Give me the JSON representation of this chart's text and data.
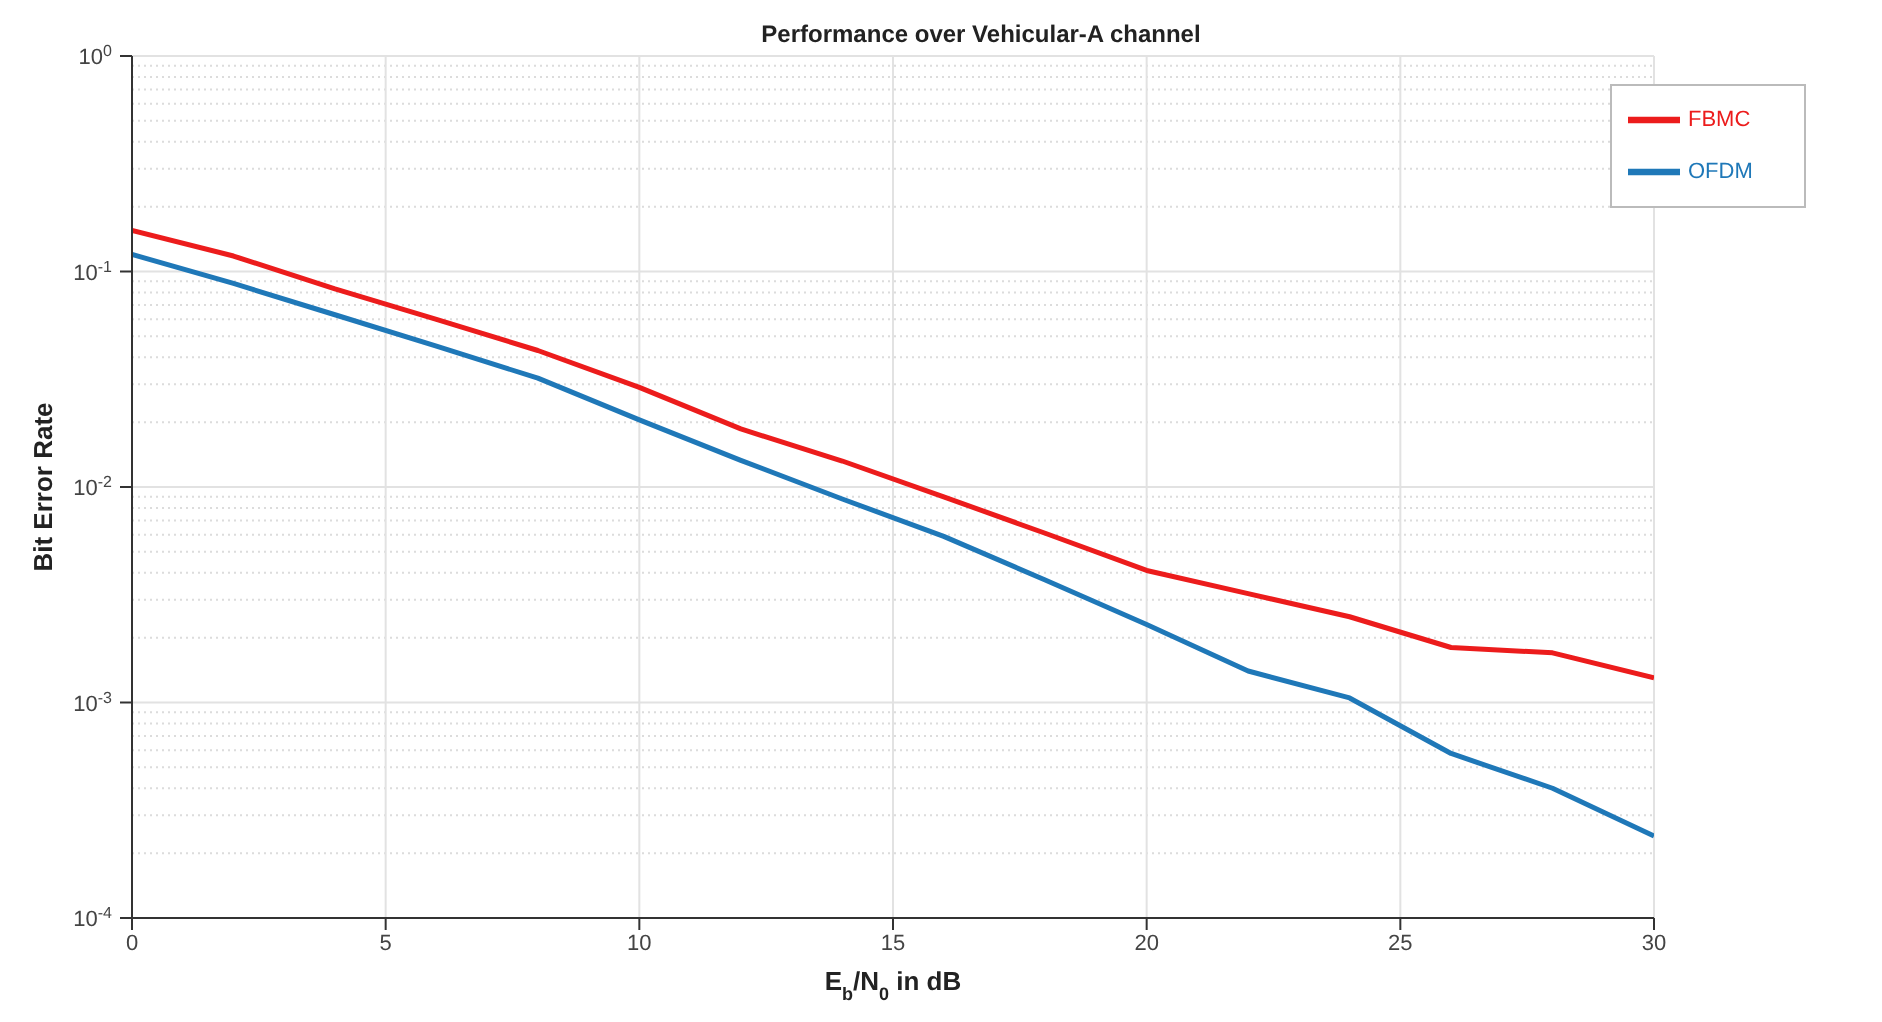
{
  "chart_data": {
    "type": "line",
    "title": "Performance over Vehicular-A channel",
    "xlabel": "E$_{b}$/N$_{0}$ in dB",
    "ylabel": "Bit Error Rate",
    "x": [
      0,
      2,
      4,
      6,
      8,
      10,
      12,
      14,
      16,
      18,
      20,
      22,
      24,
      26,
      28,
      30
    ],
    "series": [
      {
        "name": "FBMC",
        "color": "#ec1c1c",
        "values": [
          0.155,
          0.118,
          0.083,
          0.06,
          0.043,
          0.029,
          0.0186,
          0.0132,
          0.009,
          0.0061,
          0.0041,
          0.0032,
          0.0025,
          0.0018,
          0.0017,
          0.0013
        ]
      },
      {
        "name": "OFDM",
        "color": "#1f78b8",
        "values": [
          0.12,
          0.088,
          0.063,
          0.045,
          0.032,
          0.0205,
          0.0133,
          0.0088,
          0.0059,
          0.0037,
          0.0023,
          0.0014,
          0.00105,
          0.00058,
          0.0004,
          0.00024
        ]
      }
    ],
    "xlim": [
      0,
      30
    ],
    "xticks": [
      0,
      5,
      10,
      15,
      20,
      25,
      30
    ],
    "ylim": [
      0.0001,
      1
    ],
    "yticks": [
      {
        "value": 0.0001,
        "label": "10$^{-4}$"
      },
      {
        "value": 0.001,
        "label": "10$^{-3}$"
      },
      {
        "value": 0.01,
        "label": "10$^{-2}$"
      },
      {
        "value": 0.1,
        "label": "10$^{-1}$"
      },
      {
        "value": 1,
        "label": "10$^{0}$"
      }
    ],
    "log": "y",
    "grid": true,
    "legend": "top right",
    "marker": "none",
    "line_style": "solid"
  }
}
